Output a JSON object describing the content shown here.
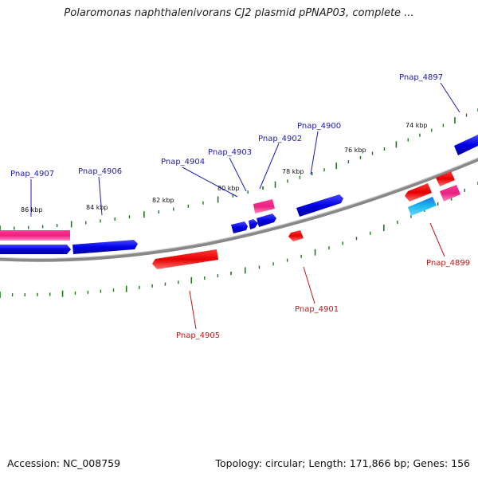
{
  "title": "Polaromonas naphthalenivorans CJ2 plasmid pPNAP03, complete ...",
  "footer": {
    "accession": "Accession: NC_008759",
    "summary": "Topology: circular; Length: 171,866 bp; Genes: 156"
  },
  "colors": {
    "backbone": "#888888",
    "ticks": "#1a7a1a",
    "forward_gene": "#0000e0",
    "reverse_gene": "#e00000",
    "pink_gene": "#ee2a8a",
    "cyan_gene": "#1fb0e6",
    "label_blue": "#1c1cb0",
    "label_red": "#c01818"
  },
  "scale_labels": [
    "86 kbp",
    "84 kbp",
    "82 kbp",
    "80 kbp",
    "78 kbp",
    "76 kbp",
    "74 kbp"
  ],
  "gene_labels": {
    "forward": [
      "Pnap_4907",
      "Pnap_4906",
      "Pnap_4904",
      "Pnap_4903",
      "Pnap_4902",
      "Pnap_4900",
      "Pnap_4897"
    ],
    "reverse": [
      "Pnap_4905",
      "Pnap_4901",
      "Pnap_4899"
    ]
  }
}
